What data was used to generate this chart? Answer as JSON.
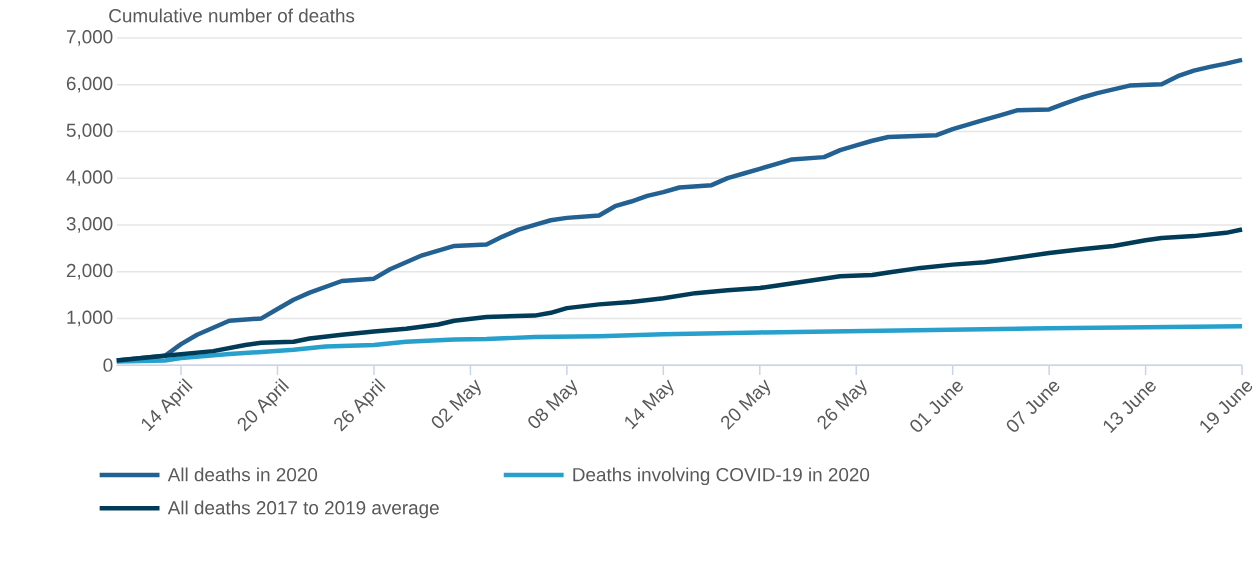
{
  "chart_data": {
    "type": "line",
    "ylabel": "Cumulative number of deaths",
    "xlim": [
      "2020-04-10",
      "2020-06-19"
    ],
    "xticks": [
      {
        "value": "2020-04-14",
        "label": "14 April"
      },
      {
        "value": "2020-04-20",
        "label": "20 April"
      },
      {
        "value": "2020-04-26",
        "label": "26 April"
      },
      {
        "value": "2020-05-02",
        "label": "02 May"
      },
      {
        "value": "2020-05-08",
        "label": "08 May"
      },
      {
        "value": "2020-05-14",
        "label": "14 May"
      },
      {
        "value": "2020-05-20",
        "label": "20 May"
      },
      {
        "value": "2020-05-26",
        "label": "26 May"
      },
      {
        "value": "2020-06-01",
        "label": "01 June"
      },
      {
        "value": "2020-06-07",
        "label": "07 June"
      },
      {
        "value": "2020-06-13",
        "label": "13 June"
      },
      {
        "value": "2020-06-19",
        "label": "19 June"
      }
    ],
    "ylim": [
      0,
      7000
    ],
    "yticks": [
      0,
      {
        "value": 1000,
        "label": "1,000"
      },
      {
        "value": 2000,
        "label": "2,000"
      },
      {
        "value": 3000,
        "label": "3,000"
      },
      {
        "value": 4000,
        "label": "4,000"
      },
      {
        "value": 5000,
        "label": "5,000"
      },
      {
        "value": 6000,
        "label": "6,000"
      },
      {
        "value": 7000,
        "label": "7,000"
      }
    ],
    "grid": "y",
    "legend": "bottom",
    "line_style": "solid",
    "marker": "none",
    "series": [
      {
        "name": "All deaths in 2020",
        "color": "#236192",
        "x": [
          "2020-04-10",
          "2020-04-13",
          "2020-04-14",
          "2020-04-15",
          "2020-04-17",
          "2020-04-19",
          "2020-04-20",
          "2020-04-21",
          "2020-04-22",
          "2020-04-24",
          "2020-04-26",
          "2020-04-27",
          "2020-04-28",
          "2020-04-29",
          "2020-04-30",
          "2020-05-01",
          "2020-05-03",
          "2020-05-04",
          "2020-05-05",
          "2020-05-06",
          "2020-05-07",
          "2020-05-08",
          "2020-05-10",
          "2020-05-11",
          "2020-05-12",
          "2020-05-13",
          "2020-05-14",
          "2020-05-15",
          "2020-05-17",
          "2020-05-18",
          "2020-05-19",
          "2020-05-20",
          "2020-05-21",
          "2020-05-22",
          "2020-05-24",
          "2020-05-25",
          "2020-05-26",
          "2020-05-27",
          "2020-05-28",
          "2020-05-31",
          "2020-06-01",
          "2020-06-02",
          "2020-06-03",
          "2020-06-04",
          "2020-06-05",
          "2020-06-07",
          "2020-06-08",
          "2020-06-09",
          "2020-06-10",
          "2020-06-11",
          "2020-06-12",
          "2020-06-14",
          "2020-06-15",
          "2020-06-16",
          "2020-06-17",
          "2020-06-18",
          "2020-06-19"
        ],
        "values": [
          100,
          200,
          450,
          650,
          950,
          1000,
          1200,
          1400,
          1550,
          1800,
          1850,
          2050,
          2200,
          2350,
          2450,
          2550,
          2580,
          2750,
          2900,
          3000,
          3100,
          3150,
          3200,
          3400,
          3500,
          3620,
          3700,
          3800,
          3850,
          4000,
          4100,
          4200,
          4300,
          4400,
          4450,
          4600,
          4700,
          4800,
          4880,
          4920,
          5050,
          5150,
          5250,
          5350,
          5450,
          5470,
          5600,
          5720,
          5820,
          5900,
          5980,
          6010,
          6180,
          6300,
          6380,
          6450,
          6530
        ]
      },
      {
        "name": "Deaths involving COVID-19 in 2020",
        "color": "#27a0cc",
        "x": [
          "2020-04-10",
          "2020-04-13",
          "2020-04-14",
          "2020-04-17",
          "2020-04-19",
          "2020-04-21",
          "2020-04-23",
          "2020-04-26",
          "2020-04-28",
          "2020-05-01",
          "2020-05-03",
          "2020-05-06",
          "2020-05-10",
          "2020-05-14",
          "2020-05-20",
          "2020-05-26",
          "2020-06-01",
          "2020-06-07",
          "2020-06-13",
          "2020-06-19"
        ],
        "values": [
          80,
          100,
          150,
          240,
          280,
          330,
          400,
          430,
          500,
          550,
          560,
          600,
          620,
          660,
          700,
          730,
          760,
          790,
          810,
          830
        ]
      },
      {
        "name": "All deaths 2017 to 2019 average",
        "color": "#003c57",
        "x": [
          "2020-04-10",
          "2020-04-13",
          "2020-04-16",
          "2020-04-18",
          "2020-04-19",
          "2020-04-21",
          "2020-04-22",
          "2020-04-24",
          "2020-04-26",
          "2020-04-28",
          "2020-04-30",
          "2020-05-01",
          "2020-05-03",
          "2020-05-06",
          "2020-05-07",
          "2020-05-08",
          "2020-05-10",
          "2020-05-12",
          "2020-05-14",
          "2020-05-16",
          "2020-05-18",
          "2020-05-20",
          "2020-05-21",
          "2020-05-23",
          "2020-05-25",
          "2020-05-27",
          "2020-05-28",
          "2020-05-30",
          "2020-06-01",
          "2020-06-03",
          "2020-06-05",
          "2020-06-07",
          "2020-06-09",
          "2020-06-11",
          "2020-06-13",
          "2020-06-14",
          "2020-06-16",
          "2020-06-18",
          "2020-06-19"
        ],
        "values": [
          100,
          200,
          300,
          430,
          480,
          500,
          570,
          650,
          720,
          780,
          870,
          950,
          1030,
          1060,
          1120,
          1220,
          1300,
          1350,
          1430,
          1540,
          1600,
          1650,
          1700,
          1800,
          1900,
          1930,
          1980,
          2080,
          2150,
          2200,
          2300,
          2400,
          2480,
          2550,
          2670,
          2720,
          2760,
          2830,
          2900
        ]
      }
    ]
  }
}
